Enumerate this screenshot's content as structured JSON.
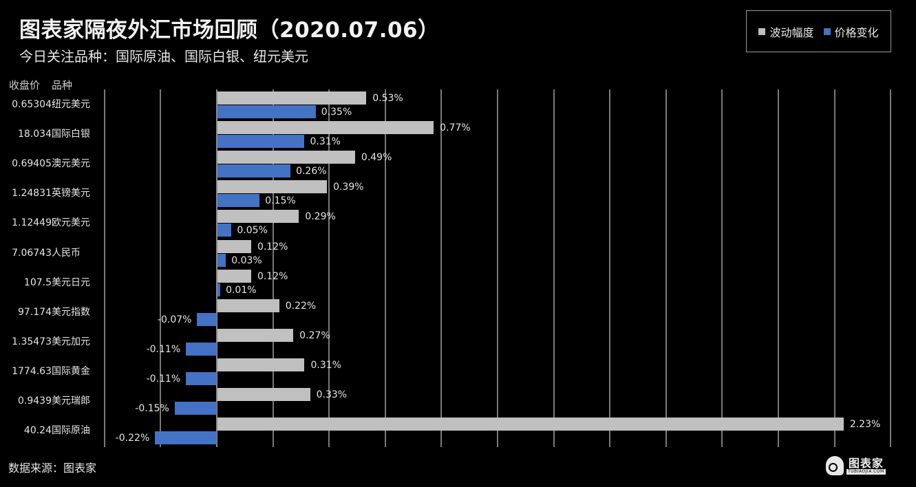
{
  "header": {
    "title": "图表家隔夜外汇市场回顾（2020.07.06）",
    "subtitle": "今日关注品种：国际原油、国际白银、纽元美元"
  },
  "legend": {
    "items": [
      {
        "label": "波动幅度",
        "color": "#c0c0c0"
      },
      {
        "label": "价格变化",
        "color": "#4472c4"
      }
    ]
  },
  "table_headers": {
    "price": "收盘价",
    "name": "品种"
  },
  "footer": {
    "source": "数据来源：图表家"
  },
  "logo": {
    "cn": "图表家",
    "en": "TUBIAOJIA.COM"
  },
  "colors": {
    "volatility": "#c0c0c0",
    "change": "#4472c4",
    "background": "#000000",
    "grid": "#7a7a7a"
  },
  "chart_data": {
    "type": "bar",
    "orientation": "horizontal",
    "title": "图表家隔夜外汇市场回顾（2020.07.06）",
    "subtitle": "今日关注品种：国际原油、国际白银、纽元美元",
    "categories": [
      "纽元美元",
      "国际白银",
      "澳元美元",
      "英镑美元",
      "欧元美元",
      "人民币",
      "美元日元",
      "美元指数",
      "美元加元",
      "国际黄金",
      "美元瑞郎",
      "国际原油"
    ],
    "close_prices": [
      "0.65304",
      "18.034",
      "0.69405",
      "1.24831",
      "1.12449",
      "7.06743",
      "107.5",
      "97.174",
      "1.35473",
      "1774.63",
      "0.9439",
      "40.24"
    ],
    "series": [
      {
        "name": "波动幅度",
        "values": [
          0.53,
          0.77,
          0.49,
          0.39,
          0.29,
          0.12,
          0.12,
          0.22,
          0.27,
          0.31,
          0.33,
          2.23
        ],
        "labels": [
          "0.53%",
          "0.77%",
          "0.49%",
          "0.39%",
          "0.29%",
          "0.12%",
          "0.12%",
          "0.22%",
          "0.27%",
          "0.31%",
          "0.33%",
          "2.23%"
        ]
      },
      {
        "name": "价格变化",
        "values": [
          0.35,
          0.31,
          0.26,
          0.15,
          0.05,
          0.03,
          0.01,
          -0.07,
          -0.11,
          -0.11,
          -0.15,
          -0.22
        ],
        "labels": [
          "0.35%",
          "0.31%",
          "0.26%",
          "0.15%",
          "0.05%",
          "0.03%",
          "0.01%",
          "-0.07%",
          "-0.11%",
          "-0.11%",
          "-0.15%",
          "-0.22%"
        ]
      }
    ],
    "xlabel": "",
    "ylabel": "",
    "xlim": [
      -0.4,
      2.4
    ],
    "grid_step": 0.2,
    "grid": true,
    "legend_position": "top-right",
    "unit": "%"
  }
}
